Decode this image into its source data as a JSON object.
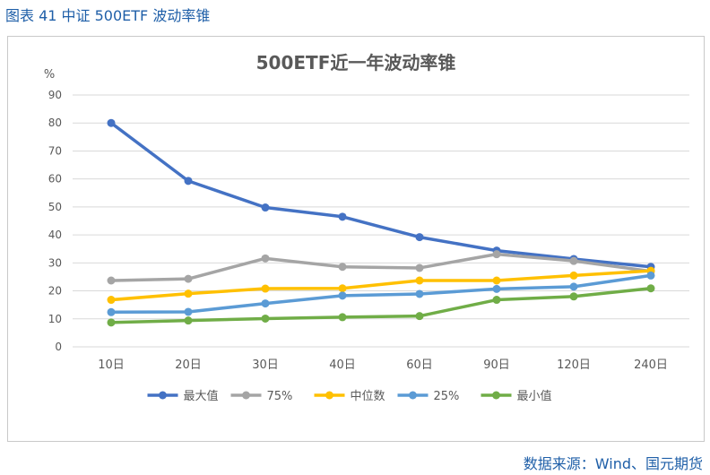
{
  "figure_caption": "图表 41 中证 500ETF 波动率锥",
  "source": "数据来源：Wind、国元期货",
  "chart_data": {
    "type": "line",
    "title": "500ETF近一年波动率锥",
    "y_unit_label": "%",
    "categories": [
      "10日",
      "20日",
      "30日",
      "40日",
      "60日",
      "90日",
      "120日",
      "240日"
    ],
    "ylim": [
      0,
      90
    ],
    "yticks": [
      0,
      10,
      20,
      30,
      40,
      50,
      60,
      70,
      80,
      90
    ],
    "grid": true,
    "legend_position": "bottom",
    "series": [
      {
        "name": "最大值",
        "color": "#4472c4",
        "values": [
          80.0,
          59.3,
          49.8,
          46.5,
          39.2,
          34.4,
          31.4,
          28.6
        ]
      },
      {
        "name": "75%",
        "color": "#a5a5a5",
        "values": [
          23.7,
          24.3,
          31.6,
          28.6,
          28.2,
          33.1,
          30.7,
          27.0
        ]
      },
      {
        "name": "中位数",
        "color": "#ffc000",
        "values": [
          16.8,
          19.0,
          20.8,
          20.9,
          23.7,
          23.7,
          25.5,
          27.2
        ]
      },
      {
        "name": "25%",
        "color": "#5b9bd5",
        "values": [
          12.4,
          12.5,
          15.5,
          18.3,
          18.9,
          20.7,
          21.5,
          25.5
        ]
      },
      {
        "name": "最小值",
        "color": "#70ad47",
        "values": [
          8.7,
          9.4,
          10.1,
          10.6,
          11.0,
          16.8,
          18.0,
          20.9
        ]
      }
    ]
  }
}
